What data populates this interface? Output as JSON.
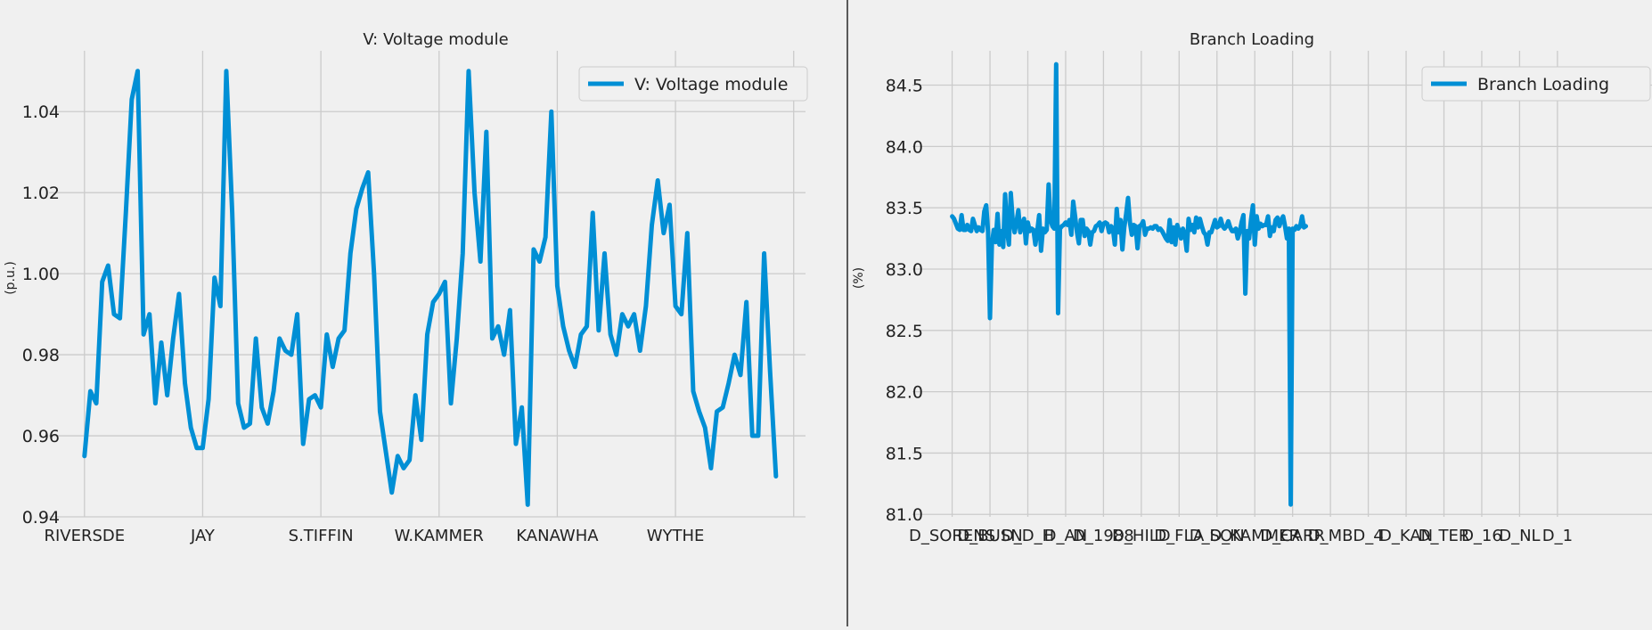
{
  "chart_data": [
    {
      "type": "line",
      "title": "V: Voltage module",
      "ylabel": "(p.u.)",
      "xlabel": "",
      "ylim": [
        0.94,
        1.055
      ],
      "yticks": [
        "0.94",
        "0.96",
        "0.98",
        "1.00",
        "1.02",
        "1.04"
      ],
      "ytick_values": [
        0.94,
        0.96,
        0.98,
        1.0,
        1.02,
        1.04
      ],
      "xticks": [
        "RIVERSDE",
        "JAY",
        "S.TIFFIN",
        "W.KAMMER",
        "KANAWHA",
        "WYTHE",
        ""
      ],
      "xtick_index": [
        0,
        20,
        40,
        60,
        80,
        100,
        120
      ],
      "xlim": [
        -6,
        122
      ],
      "grid": true,
      "legend_position": "top-right",
      "series": [
        {
          "name": "V: Voltage module",
          "color": "#008fd5",
          "values": [
            0.955,
            0.971,
            0.968,
            0.998,
            1.002,
            0.99,
            0.989,
            1.015,
            1.043,
            1.05,
            0.985,
            0.99,
            0.968,
            0.983,
            0.97,
            0.984,
            0.995,
            0.973,
            0.962,
            0.957,
            0.957,
            0.969,
            0.999,
            0.992,
            1.05,
            1.015,
            0.968,
            0.962,
            0.963,
            0.984,
            0.967,
            0.963,
            0.971,
            0.984,
            0.981,
            0.98,
            0.99,
            0.958,
            0.969,
            0.97,
            0.967,
            0.985,
            0.977,
            0.984,
            0.986,
            1.005,
            1.016,
            1.021,
            1.025,
            1.0,
            0.966,
            0.956,
            0.946,
            0.955,
            0.952,
            0.954,
            0.97,
            0.959,
            0.985,
            0.993,
            0.995,
            0.998,
            0.968,
            0.984,
            1.005,
            1.05,
            1.02,
            1.003,
            1.035,
            0.984,
            0.987,
            0.98,
            0.991,
            0.958,
            0.967,
            0.943,
            1.006,
            1.003,
            1.009,
            1.04,
            0.997,
            0.987,
            0.981,
            0.977,
            0.985,
            0.987,
            1.015,
            0.986,
            1.005,
            0.985,
            0.98,
            0.99,
            0.987,
            0.99,
            0.981,
            0.992,
            1.012,
            1.023,
            1.01,
            1.017,
            0.992,
            0.99,
            1.01,
            0.971,
            0.966,
            0.962,
            0.952,
            0.966,
            0.967,
            0.973,
            0.98,
            0.975,
            0.993,
            0.96,
            0.96,
            1.005,
            0.976,
            0.95
          ]
        }
      ]
    },
    {
      "type": "line",
      "title": "Branch Loading",
      "ylabel": "(%)",
      "xlabel": "",
      "ylim": [
        80.98,
        84.78
      ],
      "yticks": [
        "81.0",
        "81.5",
        "82.0",
        "82.5",
        "83.0",
        "83.5",
        "84.0",
        "84.5"
      ],
      "ytick_values": [
        81.0,
        81.5,
        82.0,
        82.5,
        83.0,
        83.5,
        84.0,
        84.5
      ],
      "xticks": [
        "D_SORENS",
        "D_BUSN",
        "D_D_H",
        "D_AN",
        "D_1988",
        "D_HILD",
        "D_FLA",
        "D_SON",
        "D_KAMMER",
        "D_CARR",
        "D_MB",
        "D_4",
        "D_KAN",
        "D_TER",
        "D_16",
        "D_NL",
        "D_1"
      ],
      "xtick_index": [
        0,
        20,
        40,
        60,
        80,
        100,
        120,
        140,
        160,
        180,
        200,
        220,
        240,
        260,
        280,
        300,
        320
      ],
      "xlim": [
        -21,
        370
      ],
      "grid": true,
      "legend_position": "top-right",
      "series": [
        {
          "name": "Branch Loading",
          "color": "#008fd5",
          "values": [
            83.43,
            83.41,
            83.37,
            83.33,
            83.32,
            83.44,
            83.32,
            83.32,
            83.36,
            83.32,
            83.31,
            83.41,
            83.36,
            83.31,
            83.34,
            83.32,
            83.31,
            83.47,
            83.52,
            83.3,
            82.6,
            83.2,
            83.32,
            83.22,
            83.45,
            83.2,
            83.31,
            83.18,
            83.61,
            83.32,
            83.2,
            83.62,
            83.4,
            83.3,
            83.38,
            83.48,
            83.3,
            83.36,
            83.41,
            83.21,
            83.38,
            83.31,
            83.33,
            83.32,
            83.2,
            83.31,
            83.44,
            83.15,
            83.33,
            83.3,
            83.32,
            83.69,
            83.4,
            83.35,
            83.33,
            84.67,
            82.64,
            83.33,
            83.35,
            83.36,
            83.38,
            83.36,
            83.4,
            83.28,
            83.55,
            83.43,
            83.3,
            83.21,
            83.4,
            83.4,
            83.27,
            83.33,
            83.31,
            83.2,
            83.3,
            83.31,
            83.35,
            83.36,
            83.38,
            83.31,
            83.37,
            83.38,
            83.37,
            83.3,
            83.35,
            83.33,
            83.2,
            83.49,
            83.3,
            83.4,
            83.16,
            83.34,
            83.45,
            83.58,
            83.38,
            83.28,
            83.36,
            83.35,
            83.17,
            83.35,
            83.36,
            83.39,
            83.28,
            83.33,
            83.33,
            83.34,
            83.33,
            83.35,
            83.35,
            83.32,
            83.33,
            83.31,
            83.28,
            83.25,
            83.23,
            83.4,
            83.22,
            83.34,
            83.2,
            83.36,
            83.31,
            83.25,
            83.33,
            83.28,
            83.15,
            83.41,
            83.32,
            83.36,
            83.3,
            83.42,
            83.34,
            83.41,
            83.35,
            83.3,
            83.28,
            83.2,
            83.3,
            83.3,
            83.35,
            83.4,
            83.34,
            83.35,
            83.41,
            83.35,
            83.33,
            83.35,
            83.39,
            83.34,
            83.31,
            83.31,
            83.33,
            83.25,
            83.3,
            83.38,
            83.44,
            82.8,
            83.31,
            83.25,
            83.4,
            83.52,
            83.2,
            83.43,
            83.33,
            83.37,
            83.35,
            83.36,
            83.36,
            83.43,
            83.27,
            83.34,
            83.31,
            83.4,
            83.42,
            83.35,
            83.4,
            83.43,
            83.35,
            83.25,
            83.33,
            81.08,
            83.33,
            83.32,
            83.35,
            83.33,
            83.35,
            83.43,
            83.34,
            83.35
          ]
        }
      ]
    }
  ]
}
